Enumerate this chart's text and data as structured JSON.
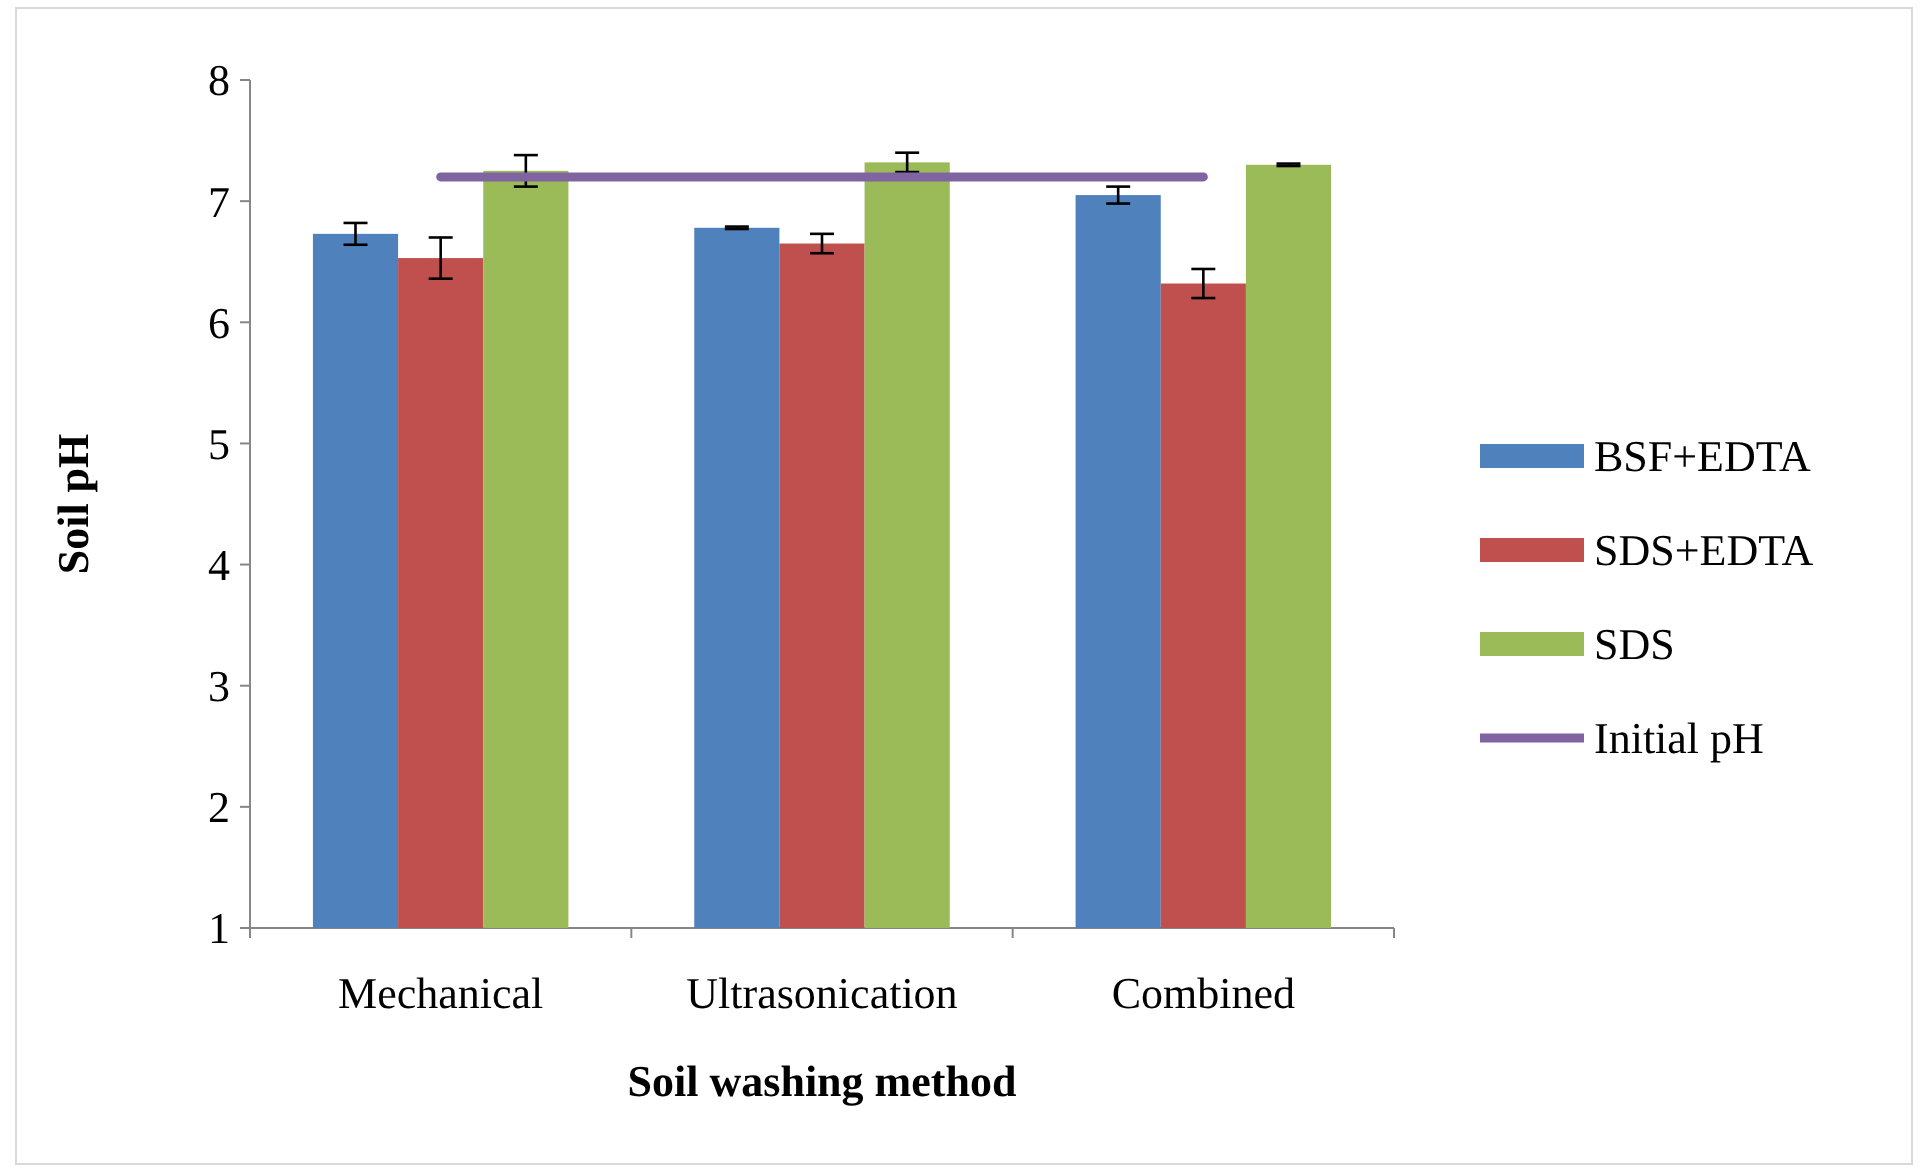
{
  "chart_data": {
    "type": "bar",
    "xlabel": "Soil washing method",
    "ylabel": "Soil pH",
    "categories": [
      "Mechanical",
      "Ultrasonication",
      "Combined"
    ],
    "series": [
      {
        "name": "BSF+EDTA",
        "color": "#4f81bd",
        "values": [
          6.73,
          6.78,
          7.05
        ],
        "errors": [
          0.09,
          0.01,
          0.07
        ]
      },
      {
        "name": "SDS+EDTA",
        "color": "#c0504d",
        "values": [
          6.53,
          6.65,
          6.32
        ],
        "errors": [
          0.17,
          0.08,
          0.12
        ]
      },
      {
        "name": "SDS",
        "color": "#9bbb59",
        "values": [
          7.25,
          7.32,
          7.3
        ],
        "errors": [
          0.13,
          0.08,
          0.01
        ]
      },
      {
        "name": "Initial pH",
        "type": "line",
        "color": "#8064a2",
        "values": [
          7.2,
          7.2,
          7.2
        ]
      }
    ],
    "ylim": [
      1,
      8
    ],
    "yticks": [
      1,
      2,
      3,
      4,
      5,
      6,
      7,
      8
    ],
    "legend": "right"
  }
}
